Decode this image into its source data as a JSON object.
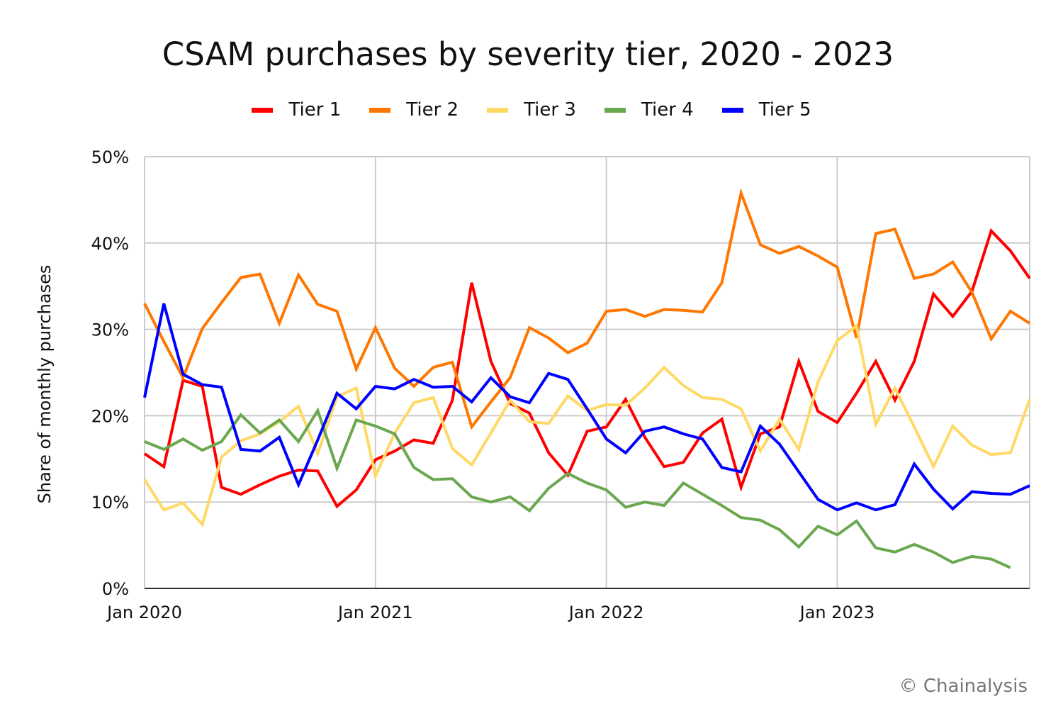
{
  "chart_data": {
    "type": "line",
    "title": "CSAM purchases by severity tier, 2020 - 2023",
    "xlabel": "",
    "ylabel": "Share of monthly purchases",
    "ylim": [
      0,
      50
    ],
    "yticks": [
      "0%",
      "10%",
      "20%",
      "30%",
      "40%",
      "50%"
    ],
    "xticks": [
      "Jan 2020",
      "Jan 2021",
      "Jan 2022",
      "Jan 2023"
    ],
    "grid": true,
    "legend": "top",
    "x": [
      "2020-01",
      "2020-02",
      "2020-03",
      "2020-04",
      "2020-05",
      "2020-06",
      "2020-07",
      "2020-08",
      "2020-09",
      "2020-10",
      "2020-11",
      "2020-12",
      "2021-01",
      "2021-02",
      "2021-03",
      "2021-04",
      "2021-05",
      "2021-06",
      "2021-07",
      "2021-08",
      "2021-09",
      "2021-10",
      "2021-11",
      "2021-12",
      "2022-01",
      "2022-02",
      "2022-03",
      "2022-04",
      "2022-05",
      "2022-06",
      "2022-07",
      "2022-08",
      "2022-09",
      "2022-10",
      "2022-11",
      "2022-12",
      "2023-01",
      "2023-02",
      "2023-03",
      "2023-04",
      "2023-05",
      "2023-06",
      "2023-07",
      "2023-08",
      "2023-09",
      "2023-10",
      "2023-11"
    ],
    "series": [
      {
        "name": "Tier 1",
        "color": "#ff0000",
        "values": [
          15.6,
          14.1,
          24.1,
          23.4,
          11.7,
          10.9,
          12.0,
          13.0,
          13.7,
          13.6,
          9.5,
          11.4,
          14.9,
          15.9,
          17.2,
          16.8,
          21.8,
          35.4,
          26.3,
          21.4,
          20.3,
          15.7,
          13.1,
          18.2,
          18.7,
          21.9,
          17.5,
          14.1,
          14.6,
          18.0,
          19.6,
          11.7,
          17.9,
          18.7,
          26.3,
          20.5,
          19.2,
          22.6,
          26.3,
          21.8,
          26.3,
          34.1,
          31.5,
          34.4,
          41.4,
          39.1,
          35.9
        ]
      },
      {
        "name": "Tier 2",
        "color": "#ff7700",
        "values": [
          33.0,
          28.6,
          24.4,
          30.1,
          33.1,
          36.0,
          36.4,
          30.7,
          36.3,
          32.9,
          32.1,
          25.4,
          30.2,
          25.5,
          23.4,
          25.6,
          26.2,
          18.7,
          21.6,
          24.4,
          30.2,
          29.0,
          27.3,
          28.4,
          32.1,
          32.3,
          31.5,
          32.3,
          32.2,
          32.0,
          35.4,
          45.8,
          39.8,
          38.8,
          39.6,
          38.5,
          37.2,
          29.0,
          41.1,
          41.6,
          35.9,
          36.4,
          37.8,
          34.3,
          28.9,
          32.1,
          30.7
        ]
      },
      {
        "name": "Tier 3",
        "color": "#ffd966",
        "values": [
          12.6,
          9.1,
          9.9,
          7.4,
          15.2,
          17.1,
          17.9,
          19.3,
          21.1,
          15.6,
          22.2,
          23.2,
          13.0,
          18.0,
          21.5,
          22.1,
          16.2,
          14.3,
          18.0,
          21.8,
          19.3,
          19.1,
          22.3,
          20.6,
          21.3,
          21.2,
          23.2,
          25.6,
          23.5,
          22.1,
          21.9,
          20.8,
          15.9,
          19.6,
          16.1,
          23.9,
          28.7,
          30.4,
          19.0,
          23.2,
          18.7,
          14.1,
          18.8,
          16.6,
          15.5,
          15.7,
          21.9
        ]
      },
      {
        "name": "Tier 4",
        "color": "#6aa84f",
        "values": [
          17.0,
          16.1,
          17.3,
          16.0,
          17.0,
          20.1,
          18.0,
          19.5,
          17.0,
          20.6,
          13.9,
          19.5,
          18.8,
          17.9,
          14.0,
          12.6,
          12.7,
          10.6,
          10.0,
          10.6,
          9.0,
          11.6,
          13.3,
          12.2,
          11.4,
          9.4,
          10.0,
          9.6,
          12.2,
          10.9,
          9.6,
          8.2,
          7.9,
          6.8,
          4.8,
          7.2,
          6.2,
          7.8,
          4.7,
          4.2,
          5.1,
          4.2,
          3.0,
          3.7,
          3.4,
          2.4,
          null
        ]
      },
      {
        "name": "Tier 5",
        "color": "#0000ff",
        "values": [
          22.1,
          33.0,
          24.8,
          23.6,
          23.3,
          16.1,
          15.9,
          17.5,
          12.0,
          17.2,
          22.6,
          20.8,
          23.4,
          23.1,
          24.2,
          23.3,
          23.4,
          21.6,
          24.4,
          22.2,
          21.5,
          24.9,
          24.2,
          20.8,
          17.3,
          15.7,
          18.2,
          18.7,
          17.9,
          17.3,
          14.0,
          13.5,
          18.8,
          16.7,
          13.5,
          10.3,
          9.1,
          9.9,
          9.1,
          9.7,
          14.4,
          11.5,
          9.2,
          11.2,
          11.0,
          10.9,
          11.9
        ]
      }
    ]
  },
  "credit": "© Chainalysis"
}
